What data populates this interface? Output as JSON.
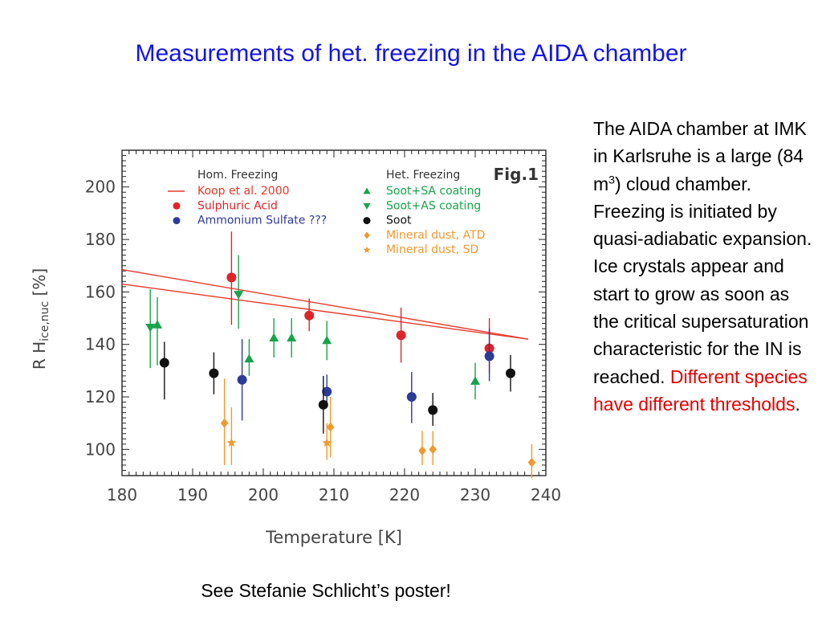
{
  "slide": {
    "title": "Measurements of het. freezing in the AIDA chamber",
    "footer_note": "See Stefanie Schlicht’s poster!",
    "side_text": {
      "part1": "The AIDA chamber at IMK in Karlsruhe is a large (84 m",
      "superscript": "3",
      "part2": ") cloud chamber. Freezing is initiated by quasi-adiabatic expansion. Ice crystals appear and start to grow as soon as the critical supersaturation characteristic for the IN is reached.",
      "highlight": "Different species have different thresholds",
      "end": "."
    }
  },
  "chart_data": {
    "type": "scatter",
    "fig_label": "Fig.1",
    "xlabel": "Temperature [K]",
    "ylabel_main": "R H",
    "ylabel_sub": "ice,nuc",
    "ylabel_unit": " [%]",
    "xlim": [
      180,
      240
    ],
    "ylim": [
      90,
      214
    ],
    "xticks": [
      180,
      190,
      200,
      210,
      220,
      230,
      240
    ],
    "yticks": [
      100,
      120,
      140,
      160,
      180,
      200
    ],
    "legend_headers": {
      "left": "Hom. Freezing",
      "right": "Het. Freezing"
    },
    "lines": [
      {
        "name": "Koop et al. 2000",
        "color": "#e8392b",
        "points": [
          [
            180,
            168.5
          ],
          [
            237.5,
            142
          ]
        ]
      },
      {
        "name": "",
        "color": "#e8392b",
        "points": [
          [
            180,
            163
          ],
          [
            237.5,
            142
          ]
        ]
      }
    ],
    "series": [
      {
        "name": "Sulphuric Acid",
        "marker": "circle",
        "color": "#e0242a",
        "points": [
          [
            195.5,
            165.5,
            147.5,
            183
          ],
          [
            206.5,
            151,
            145,
            157.5
          ],
          [
            219.5,
            143.5,
            133,
            154
          ],
          [
            232,
            138.5,
            129,
            150
          ]
        ]
      },
      {
        "name": "Ammonium Sulfate  ???",
        "marker": "circle",
        "color": "#2d3a9a",
        "points": [
          [
            197,
            126.5,
            111,
            142
          ],
          [
            209,
            122,
            116,
            128.5
          ],
          [
            221,
            120,
            110,
            129.5
          ],
          [
            232,
            135.5,
            126,
            146
          ]
        ]
      },
      {
        "name": "Soot+SA coating",
        "marker": "triangle-up",
        "color": "#17a34a",
        "points": [
          [
            185,
            147.5,
            132,
            158
          ],
          [
            198,
            134.5,
            128,
            142
          ],
          [
            201.5,
            142.5,
            135,
            150
          ],
          [
            204,
            142.5,
            135,
            150
          ],
          [
            209,
            141.5,
            134,
            149
          ],
          [
            230,
            126,
            119,
            133
          ]
        ]
      },
      {
        "name": "Soot+AS coating",
        "marker": "triangle-down",
        "color": "#17a34a",
        "points": [
          [
            184,
            146.5,
            131,
            161
          ],
          [
            196.5,
            159,
            146,
            174
          ]
        ]
      },
      {
        "name": "Soot",
        "marker": "circle",
        "color": "#111111",
        "points": [
          [
            186,
            133,
            119,
            141
          ],
          [
            193,
            129,
            121,
            137
          ],
          [
            208.5,
            117,
            106,
            128
          ],
          [
            224,
            115,
            109,
            121.5
          ],
          [
            235,
            129,
            122,
            136
          ]
        ]
      },
      {
        "name": "Mineral dust, ATD",
        "marker": "diamond",
        "color": "#f2992e",
        "points": [
          [
            194.5,
            110,
            94,
            127
          ],
          [
            209.5,
            108.5,
            97,
            120
          ],
          [
            222.5,
            99.5,
            94,
            107
          ],
          [
            224,
            100,
            94,
            107
          ],
          [
            238,
            95,
            89,
            102
          ]
        ]
      },
      {
        "name": "Mineral dust, SD",
        "marker": "star",
        "color": "#f2992e",
        "points": [
          [
            195.5,
            102.5,
            94,
            116
          ],
          [
            209,
            102.5,
            96,
            110
          ]
        ]
      }
    ]
  }
}
